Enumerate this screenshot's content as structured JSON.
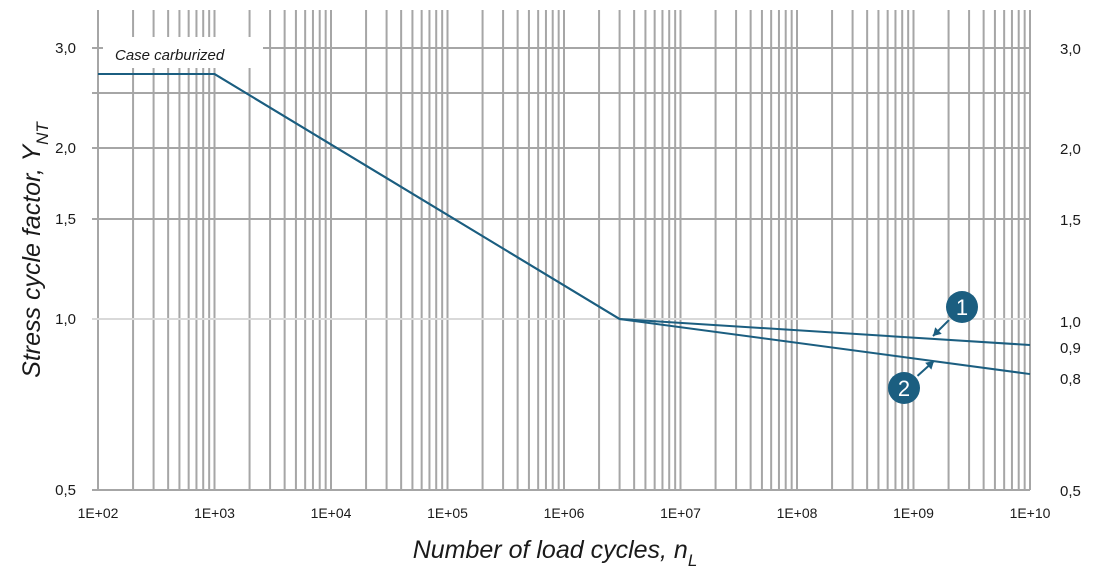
{
  "chart_data": {
    "type": "line",
    "xscale": "log",
    "yscale": "log",
    "xlim": [
      100,
      10000000000
    ],
    "ylim": [
      0.5,
      3.5
    ],
    "grid": true,
    "xlabel": "Number of load cycles, n",
    "xlabel_sub": "L",
    "ylabel": "Stress cycle factor,  Y",
    "ylabel_sub": "NT",
    "x_ticks": [
      {
        "value": 100,
        "label": "1E+02"
      },
      {
        "value": 1000,
        "label": "1E+03"
      },
      {
        "value": 10000,
        "label": "1E+04"
      },
      {
        "value": 100000,
        "label": "1E+05"
      },
      {
        "value": 1000000,
        "label": "1E+06"
      },
      {
        "value": 10000000,
        "label": "1E+07"
      },
      {
        "value": 100000000,
        "label": "1E+08"
      },
      {
        "value": 1000000000,
        "label": "1E+09"
      },
      {
        "value": 10000000000,
        "label": "1E+10"
      }
    ],
    "y_ticks_left": [
      {
        "value": 3.0,
        "label": "3,0"
      },
      {
        "value": 2.0,
        "label": "2,0"
      },
      {
        "value": 1.5,
        "label": "1,5"
      },
      {
        "value": 1.0,
        "label": "1,0"
      },
      {
        "value": 0.5,
        "label": "0,5"
      }
    ],
    "y_ticks_right": [
      {
        "value": 3.0,
        "label": "3,0"
      },
      {
        "value": 2.0,
        "label": "2,0"
      },
      {
        "value": 1.5,
        "label": "1,5"
      },
      {
        "value": 1.0,
        "label": "1,0"
      },
      {
        "value": 0.9,
        "label": "0,9"
      },
      {
        "value": 0.8,
        "label": "0,8"
      },
      {
        "value": 0.5,
        "label": "0,5"
      }
    ],
    "y_gridlines": [
      3.0,
      2.5,
      2.0,
      1.5,
      1.0
    ],
    "annotation": "Case carburized",
    "series": [
      {
        "name": "1",
        "x": [
          100,
          1000,
          3000000,
          10000000000
        ],
        "y": [
          2.7,
          2.7,
          1.0,
          0.9
        ]
      },
      {
        "name": "2",
        "x": [
          100,
          1000,
          3000000,
          10000000000
        ],
        "y": [
          2.7,
          2.7,
          1.0,
          0.8
        ]
      }
    ],
    "markers": [
      {
        "label": "1",
        "points_to_series": "1"
      },
      {
        "label": "2",
        "points_to_series": "2"
      }
    ],
    "colors": {
      "line": "#1b5e80",
      "grid": "#a6a6a6",
      "grid_light": "#d9d9d9"
    }
  }
}
